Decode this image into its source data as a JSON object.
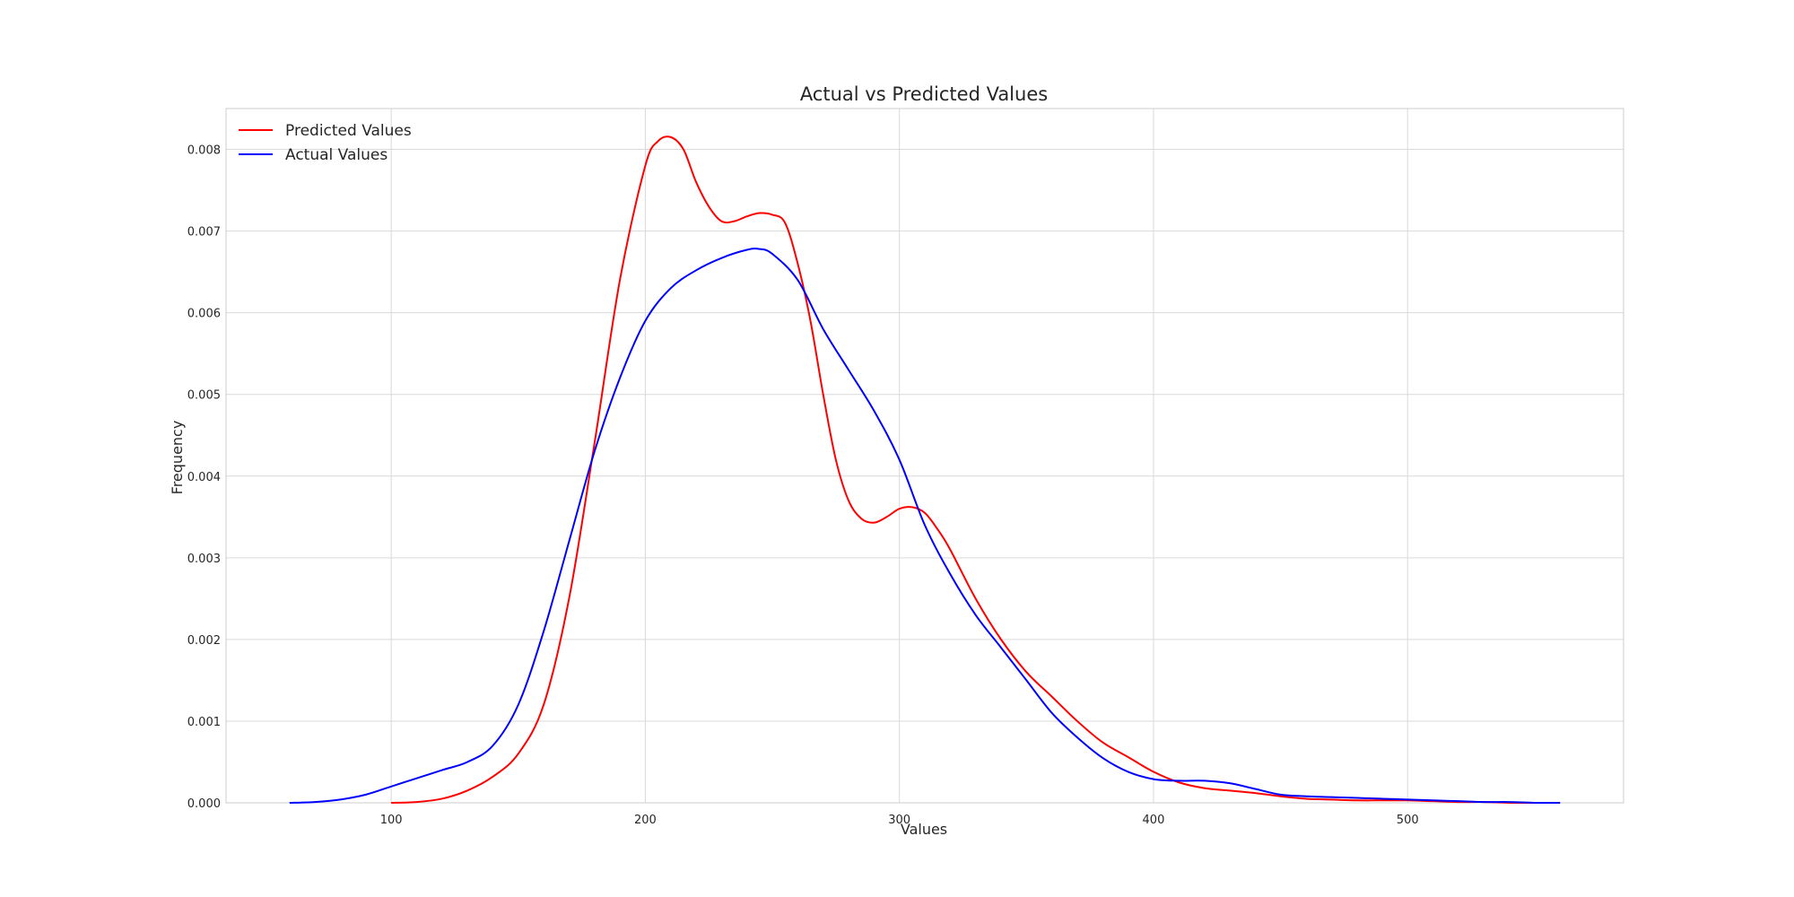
{
  "chart_data": {
    "type": "line",
    "title": "Actual vs Predicted Values",
    "xlabel": "Values",
    "ylabel": "Frequency",
    "xlim": [
      35,
      585
    ],
    "ylim": [
      0,
      0.0085
    ],
    "xticks": [
      100,
      200,
      300,
      400,
      500
    ],
    "xtick_labels": [
      "100",
      "200",
      "300",
      "400",
      "500"
    ],
    "yticks": [
      0,
      0.001,
      0.002,
      0.003,
      0.004,
      0.005,
      0.006,
      0.007,
      0.008
    ],
    "ytick_labels": [
      "0.000",
      "0.001",
      "0.002",
      "0.003",
      "0.004",
      "0.005",
      "0.006",
      "0.007",
      "0.008"
    ],
    "grid": true,
    "legend_position": "top-left",
    "series": [
      {
        "name": "Predicted Values",
        "color": "#ff0000",
        "x": [
          100,
          110,
          120,
          130,
          140,
          150,
          160,
          170,
          180,
          190,
          200,
          205,
          210,
          215,
          220,
          225,
          230,
          235,
          240,
          245,
          250,
          255,
          260,
          265,
          270,
          275,
          280,
          285,
          290,
          295,
          300,
          305,
          310,
          315,
          320,
          330,
          340,
          350,
          360,
          370,
          380,
          390,
          400,
          410,
          420,
          430,
          440,
          450,
          460,
          470,
          480,
          490,
          500,
          510,
          520,
          530,
          540,
          550,
          560
        ],
        "y": [
          0.0,
          1e-05,
          5e-05,
          0.00015,
          0.00032,
          0.0006,
          0.0012,
          0.0025,
          0.0044,
          0.0064,
          0.0078,
          0.0081,
          0.00815,
          0.008,
          0.0076,
          0.0073,
          0.00712,
          0.00712,
          0.00718,
          0.00722,
          0.0072,
          0.0071,
          0.0066,
          0.0059,
          0.005,
          0.0042,
          0.0037,
          0.00348,
          0.00343,
          0.0035,
          0.0036,
          0.00362,
          0.00355,
          0.00335,
          0.0031,
          0.0025,
          0.002,
          0.0016,
          0.0013,
          0.001,
          0.00074,
          0.00056,
          0.00038,
          0.00025,
          0.00018,
          0.00015,
          0.00012,
          8e-05,
          5e-05,
          4e-05,
          3e-05,
          3e-05,
          3e-05,
          2e-05,
          1e-05,
          1e-05,
          0.0,
          0.0,
          0.0
        ]
      },
      {
        "name": "Actual Values",
        "color": "#0000ff",
        "x": [
          60,
          70,
          80,
          90,
          100,
          110,
          120,
          130,
          140,
          150,
          160,
          170,
          180,
          190,
          200,
          210,
          220,
          230,
          240,
          245,
          250,
          260,
          270,
          280,
          290,
          300,
          310,
          320,
          330,
          340,
          350,
          360,
          370,
          380,
          390,
          400,
          410,
          420,
          430,
          440,
          450,
          460,
          470,
          480,
          490,
          500,
          510,
          520,
          530,
          540,
          550,
          560
        ],
        "y": [
          0.0,
          1e-05,
          4e-05,
          0.0001,
          0.0002,
          0.0003,
          0.0004,
          0.0005,
          0.0007,
          0.0012,
          0.0021,
          0.0032,
          0.0043,
          0.0052,
          0.0059,
          0.0063,
          0.00652,
          0.00667,
          0.00677,
          0.00678,
          0.00672,
          0.0064,
          0.0058,
          0.0053,
          0.0048,
          0.0042,
          0.0034,
          0.0028,
          0.0023,
          0.0019,
          0.0015,
          0.0011,
          0.0008,
          0.00055,
          0.00038,
          0.00029,
          0.00027,
          0.00027,
          0.00024,
          0.00017,
          0.0001,
          8e-05,
          7e-05,
          6e-05,
          5e-05,
          4e-05,
          3e-05,
          2e-05,
          1e-05,
          1e-05,
          0.0,
          0.0
        ]
      }
    ]
  }
}
